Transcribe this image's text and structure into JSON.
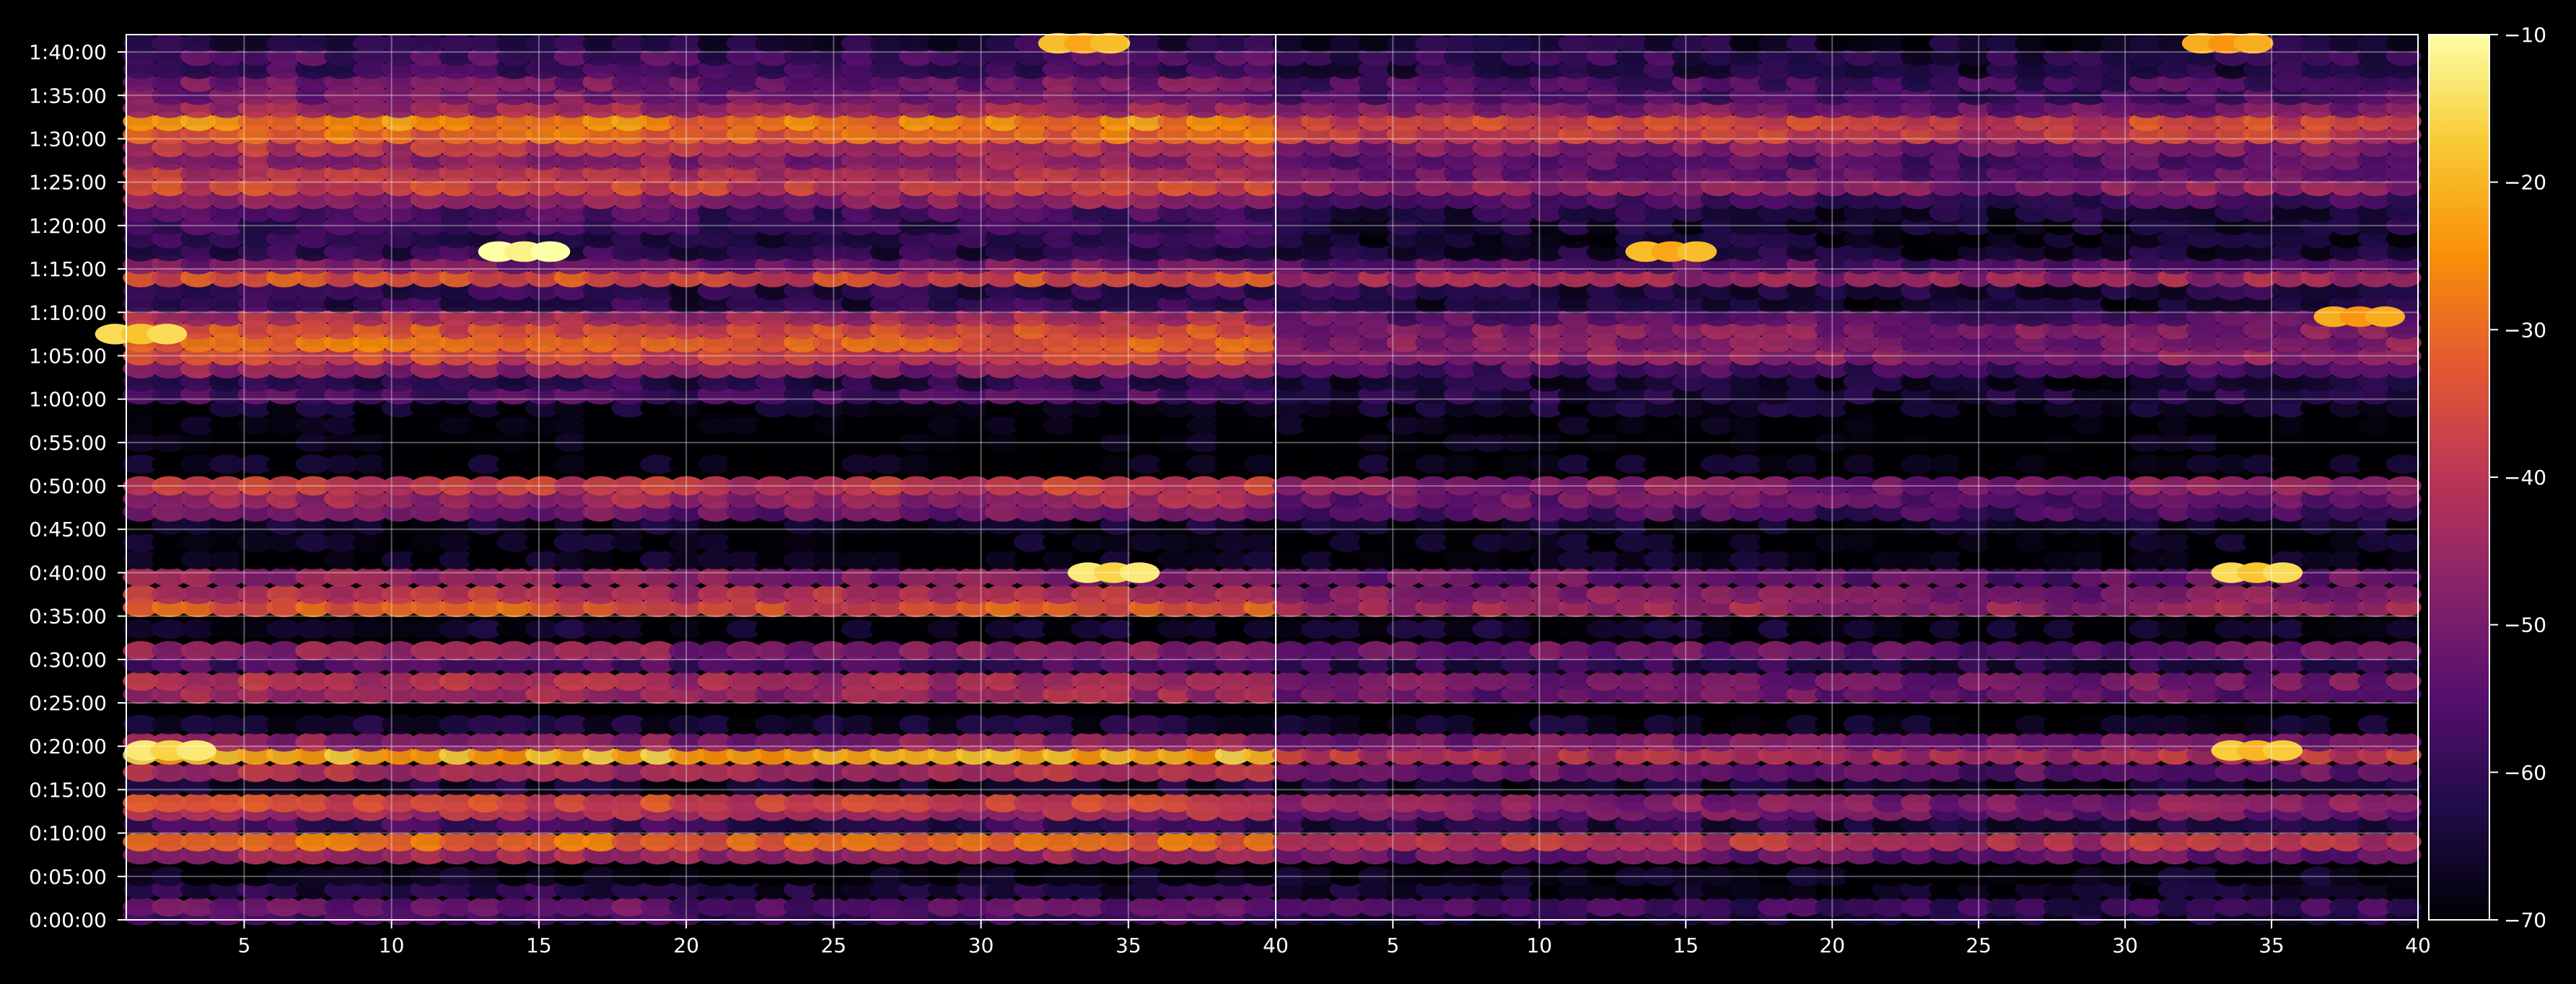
{
  "chart_data": {
    "type": "heatmap",
    "panels": [
      {
        "name": "",
        "x_ticks": [
          5,
          10,
          15,
          20,
          25,
          30,
          35,
          40
        ],
        "x_range": [
          1,
          40
        ]
      },
      {
        "name": "",
        "x_ticks": [
          5,
          10,
          15,
          20,
          25,
          30,
          35,
          40
        ],
        "x_range": [
          1,
          40
        ]
      }
    ],
    "y_ticks": [
      "0:00:00",
      "0:05:00",
      "0:10:00",
      "0:15:00",
      "0:20:00",
      "0:25:00",
      "0:30:00",
      "0:35:00",
      "0:40:00",
      "0:45:00",
      "0:50:00",
      "0:55:00",
      "1:00:00",
      "1:05:00",
      "1:10:00",
      "1:15:00",
      "1:20:00",
      "1:25:00",
      "1:30:00",
      "1:35:00",
      "1:40:00"
    ],
    "y_range_minutes": [
      0,
      102
    ],
    "colorbar": {
      "colormap": "inferno",
      "range": [
        -70,
        -10
      ],
      "ticks": [
        -10,
        -20,
        -30,
        -40,
        -50,
        -60,
        -70
      ],
      "tick_labels": [
        "−10",
        "−20",
        "−30",
        "−40",
        "−50",
        "−60",
        "−70"
      ]
    },
    "grid": true,
    "background": "#000000",
    "rows_minutes": [
      0.5,
      1.5,
      3.5,
      5.0,
      7.5,
      9.0,
      11.0,
      12.5,
      13.5,
      15.5,
      17.0,
      19.0,
      20.5,
      22.5,
      26.0,
      27.5,
      29.5,
      31.0,
      33.5,
      36.0,
      37.5,
      39.5,
      41.5,
      43.5,
      45.5,
      47.0,
      48.5,
      50.0,
      52.5,
      55.0,
      57.0,
      59.0,
      60.5,
      62.0,
      63.5,
      65.0,
      66.5,
      68.0,
      69.5,
      71.0,
      72.5,
      74.0,
      75.5,
      77.0,
      78.5,
      80.0,
      81.5,
      83.0,
      84.5,
      86.0,
      87.5,
      89.0,
      90.5,
      92.0,
      93.5,
      95.0,
      96.5,
      98.0,
      99.5,
      101.0
    ],
    "rows_panel1_dB": [
      -58,
      -52,
      -62,
      -68,
      -44,
      -30,
      -58,
      -42,
      -36,
      -64,
      -42,
      -20,
      -46,
      -64,
      -44,
      -42,
      -56,
      -46,
      -66,
      -32,
      -40,
      -46,
      -68,
      -68,
      -66,
      -50,
      -44,
      -38,
      -68,
      -70,
      -70,
      -66,
      -56,
      -60,
      -46,
      -36,
      -30,
      -34,
      -42,
      -60,
      -60,
      -34,
      -50,
      -60,
      -60,
      -58,
      -56,
      -46,
      -36,
      -40,
      -46,
      -40,
      -30,
      -26,
      -44,
      -50,
      -50,
      -58,
      -56,
      -62
    ],
    "rows_panel2_dB": [
      -64,
      -58,
      -66,
      -68,
      -52,
      -40,
      -62,
      -50,
      -48,
      -66,
      -52,
      -40,
      -50,
      -66,
      -52,
      -50,
      -60,
      -52,
      -66,
      -44,
      -48,
      -52,
      -68,
      -68,
      -66,
      -56,
      -52,
      -48,
      -68,
      -70,
      -70,
      -66,
      -62,
      -64,
      -56,
      -46,
      -48,
      -48,
      -54,
      -64,
      -62,
      -44,
      -54,
      -64,
      -66,
      -64,
      -62,
      -56,
      -46,
      -52,
      -54,
      -48,
      -38,
      -36,
      -50,
      -56,
      -56,
      -62,
      -60,
      -64
    ],
    "hotspots": [
      {
        "panel": 1,
        "x": 14.5,
        "y_minutes": 77.0,
        "value_dB": -12
      },
      {
        "panel": 1,
        "x": 34.5,
        "y_minutes": 40.0,
        "value_dB": -16
      },
      {
        "panel": 1,
        "x": 2.5,
        "y_minutes": 19.5,
        "value_dB": -16
      },
      {
        "panel": 1,
        "x": 1.5,
        "y_minutes": 67.5,
        "value_dB": -18
      },
      {
        "panel": 1,
        "x": 33.5,
        "y_minutes": 101.0,
        "value_dB": -22
      },
      {
        "panel": 2,
        "x": 34.5,
        "y_minutes": 40.0,
        "value_dB": -18
      },
      {
        "panel": 2,
        "x": 34.5,
        "y_minutes": 19.5,
        "value_dB": -20
      },
      {
        "panel": 2,
        "x": 14.5,
        "y_minutes": 77.0,
        "value_dB": -22
      },
      {
        "panel": 2,
        "x": 38.0,
        "y_minutes": 69.5,
        "value_dB": -24
      },
      {
        "panel": 2,
        "x": 33.5,
        "y_minutes": 101.0,
        "value_dB": -24
      }
    ]
  }
}
